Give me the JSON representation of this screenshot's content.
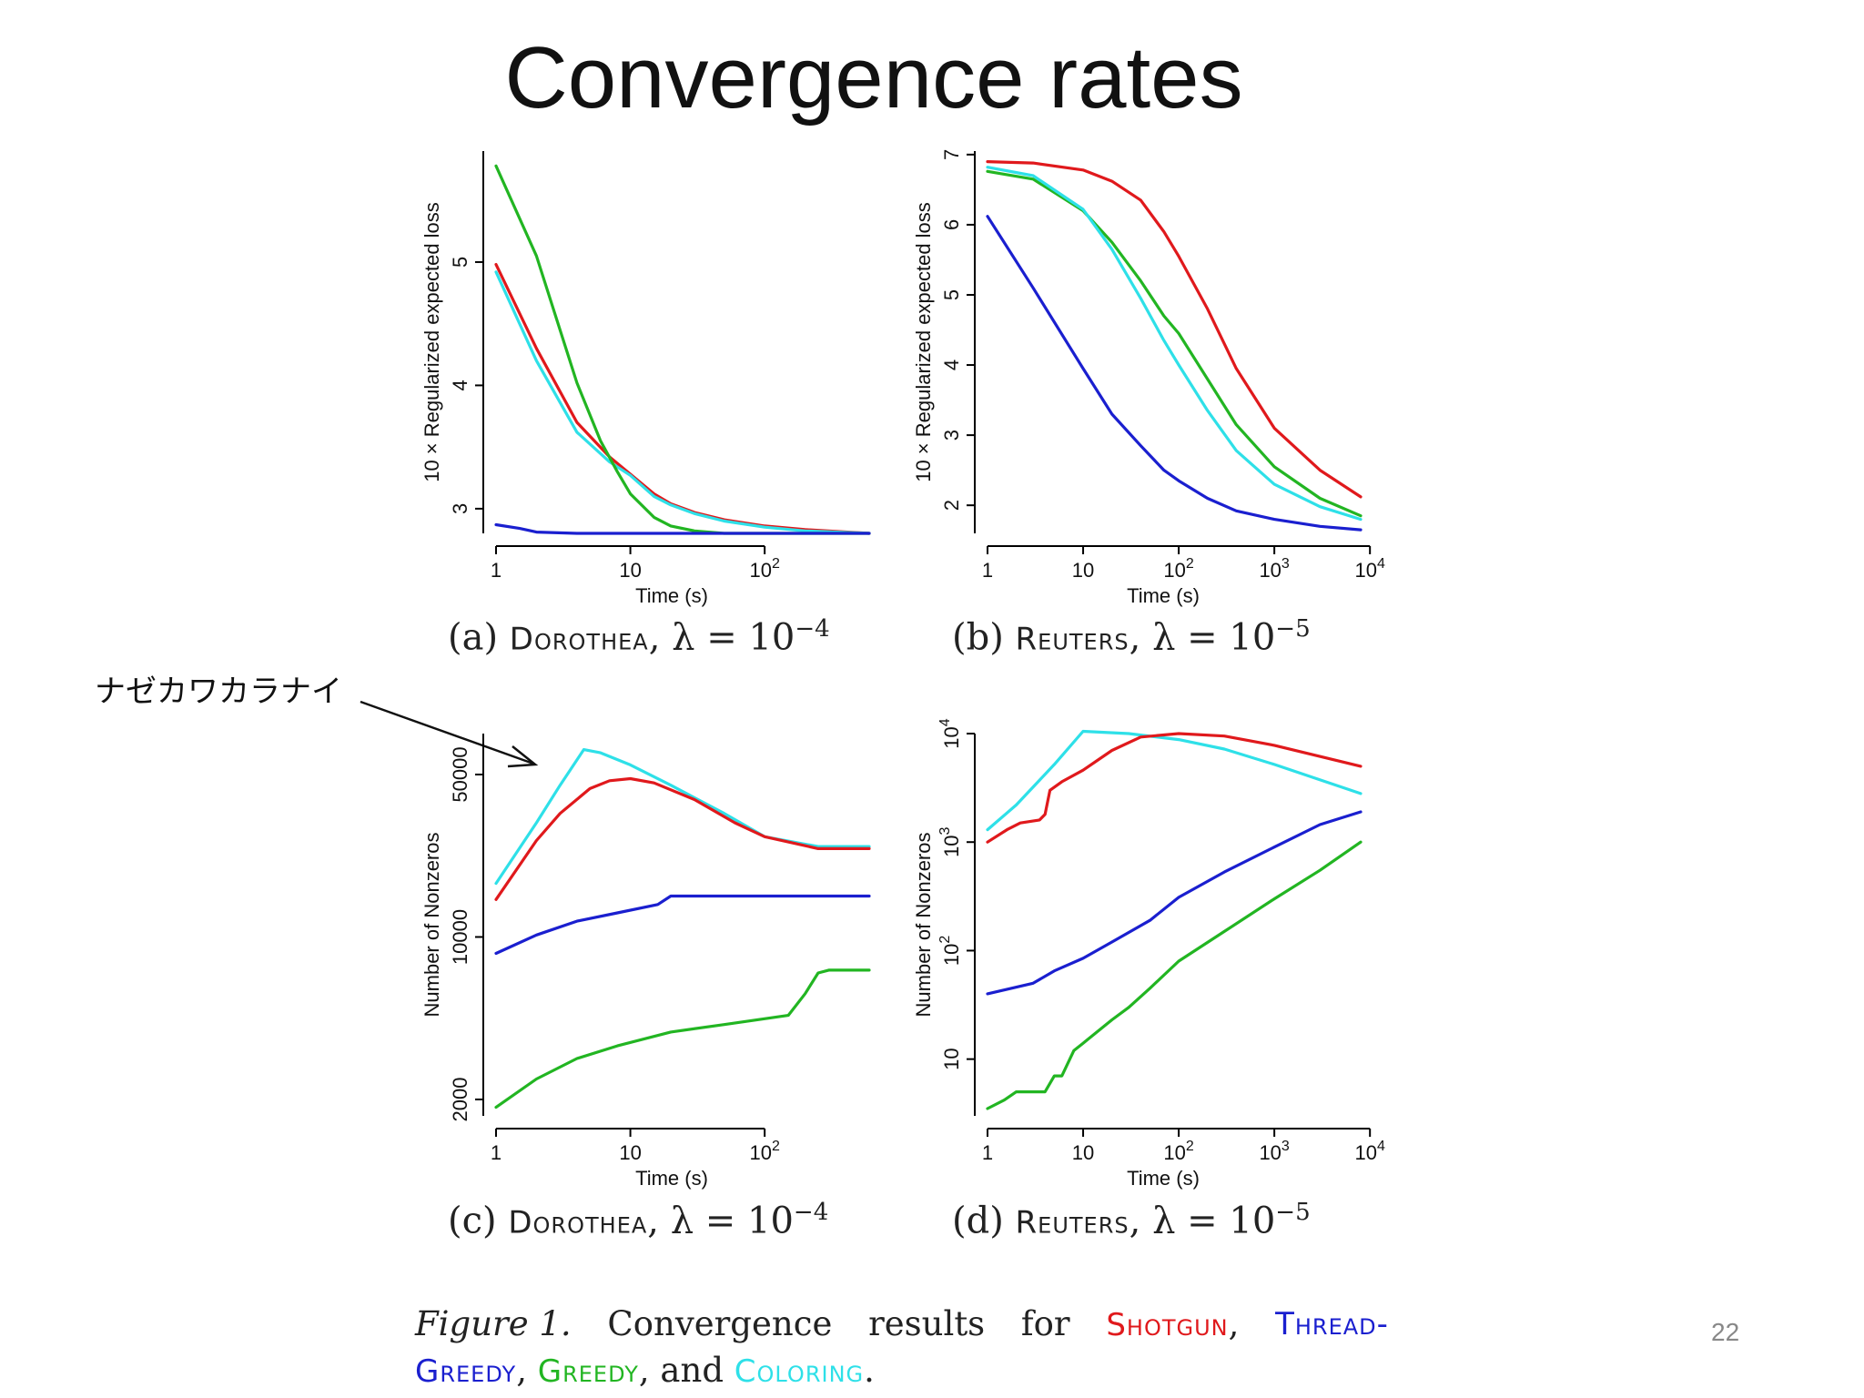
{
  "slide": {
    "title": "Convergence rates",
    "page_number": "22"
  },
  "annotation": {
    "text": "ナゼカワカラナイ"
  },
  "colors": {
    "shotgun": "#e0191c",
    "thread_greedy": "#1a1fcf",
    "greedy": "#22b522",
    "coloring": "#2ee0e8"
  },
  "panels": [
    {
      "caption_prefix": "(a)",
      "dataset": "Dorothea",
      "lambda_text": "λ = 10",
      "lambda_exp": "−4"
    },
    {
      "caption_prefix": "(b)",
      "dataset": "Reuters",
      "lambda_text": "λ = 10",
      "lambda_exp": "−5"
    },
    {
      "caption_prefix": "(c)",
      "dataset": "Dorothea",
      "lambda_text": "λ = 10",
      "lambda_exp": "−4"
    },
    {
      "caption_prefix": "(d)",
      "dataset": "Reuters",
      "lambda_text": "λ = 10",
      "lambda_exp": "−5"
    }
  ],
  "figure_caption": {
    "prefix": "Figure 1.",
    "word1": "Convergence",
    "word2": "results",
    "word3": "for",
    "shotgun": "Shotgun",
    "comma1": ",",
    "thread_part1": "Thread-",
    "thread_part2": "Greedy",
    "comma2": ",",
    "greedy": "Greedy",
    "and_text": ", and",
    "coloring": "Coloring",
    "period": "."
  },
  "chart_data": [
    {
      "type": "line",
      "title": "(a) Dorothea, λ = 10−4",
      "xlabel": "Time (s)",
      "ylabel": "10 × Regularized expected loss",
      "xscale": "log",
      "yscale": "linear",
      "xlim": [
        1,
        600
      ],
      "ylim": [
        2.8,
        5.9
      ],
      "xticks": [
        {
          "v": 1,
          "base": "1",
          "exp": ""
        },
        {
          "v": 10,
          "base": "10",
          "exp": ""
        },
        {
          "v": 100,
          "base": "10",
          "exp": "2"
        }
      ],
      "yticks": [
        {
          "v": 3,
          "label": "3"
        },
        {
          "v": 4,
          "label": "4"
        },
        {
          "v": 5,
          "label": "5"
        }
      ],
      "series": [
        {
          "name": "Shotgun",
          "color": "#e0191c",
          "x": [
            1,
            2,
            4,
            7,
            10,
            15,
            20,
            30,
            50,
            100,
            200,
            600
          ],
          "y": [
            4.98,
            4.3,
            3.7,
            3.42,
            3.28,
            3.12,
            3.04,
            2.97,
            2.91,
            2.86,
            2.83,
            2.8
          ]
        },
        {
          "name": "Coloring",
          "color": "#2ee0e8",
          "x": [
            1,
            2,
            4,
            7,
            10,
            15,
            20,
            30,
            50,
            100,
            200,
            600
          ],
          "y": [
            4.92,
            4.2,
            3.62,
            3.38,
            3.27,
            3.1,
            3.03,
            2.96,
            2.9,
            2.85,
            2.82,
            2.8
          ]
        },
        {
          "name": "Greedy",
          "color": "#22b522",
          "x": [
            1,
            2,
            4,
            6,
            8,
            10,
            15,
            20,
            30,
            50,
            100,
            600
          ],
          "y": [
            5.78,
            5.05,
            4.02,
            3.55,
            3.3,
            3.12,
            2.93,
            2.86,
            2.82,
            2.8,
            2.8,
            2.8
          ]
        },
        {
          "name": "Thread-Greedy",
          "color": "#1a1fcf",
          "x": [
            1,
            1.5,
            2,
            4,
            10,
            100,
            600
          ],
          "y": [
            2.87,
            2.84,
            2.81,
            2.8,
            2.8,
            2.8,
            2.8
          ]
        }
      ]
    },
    {
      "type": "line",
      "title": "(b) Reuters, λ = 10−5",
      "xlabel": "Time (s)",
      "ylabel": "10 × Regularized expected loss",
      "xscale": "log",
      "yscale": "linear",
      "xlim": [
        1,
        8000
      ],
      "ylim": [
        1.6,
        7.05
      ],
      "xticks": [
        {
          "v": 1,
          "base": "1",
          "exp": ""
        },
        {
          "v": 10,
          "base": "10",
          "exp": ""
        },
        {
          "v": 100,
          "base": "10",
          "exp": "2"
        },
        {
          "v": 1000,
          "base": "10",
          "exp": "3"
        },
        {
          "v": 10000,
          "base": "10",
          "exp": "4"
        }
      ],
      "yticks": [
        {
          "v": 2,
          "label": "2"
        },
        {
          "v": 3,
          "label": "3"
        },
        {
          "v": 4,
          "label": "4"
        },
        {
          "v": 5,
          "label": "5"
        },
        {
          "v": 6,
          "label": "6"
        },
        {
          "v": 7,
          "label": "7"
        }
      ],
      "series": [
        {
          "name": "Shotgun",
          "color": "#e0191c",
          "x": [
            1,
            3,
            10,
            20,
            40,
            70,
            100,
            200,
            400,
            1000,
            3000,
            8000
          ],
          "y": [
            6.9,
            6.88,
            6.78,
            6.62,
            6.35,
            5.9,
            5.55,
            4.8,
            3.95,
            3.1,
            2.5,
            2.12
          ]
        },
        {
          "name": "Greedy",
          "color": "#22b522",
          "x": [
            1,
            3,
            10,
            20,
            40,
            70,
            100,
            200,
            400,
            1000,
            3000,
            8000
          ],
          "y": [
            6.76,
            6.65,
            6.2,
            5.75,
            5.2,
            4.7,
            4.45,
            3.8,
            3.15,
            2.55,
            2.1,
            1.85
          ]
        },
        {
          "name": "Coloring",
          "color": "#2ee0e8",
          "x": [
            1,
            3,
            10,
            20,
            40,
            70,
            100,
            200,
            400,
            1000,
            3000,
            8000
          ],
          "y": [
            6.82,
            6.7,
            6.22,
            5.65,
            4.95,
            4.35,
            4.0,
            3.35,
            2.78,
            2.3,
            1.98,
            1.8
          ]
        },
        {
          "name": "Thread-Greedy",
          "color": "#1a1fcf",
          "x": [
            1,
            3,
            10,
            20,
            40,
            70,
            100,
            200,
            400,
            1000,
            3000,
            8000
          ],
          "y": [
            6.12,
            5.1,
            3.95,
            3.3,
            2.85,
            2.5,
            2.35,
            2.1,
            1.92,
            1.8,
            1.7,
            1.65
          ]
        }
      ]
    },
    {
      "type": "line",
      "title": "(c) Dorothea, λ = 10−4",
      "xlabel": "Time (s)",
      "ylabel": "Number of Nonzeros",
      "xscale": "log",
      "yscale": "log",
      "xlim": [
        1,
        600
      ],
      "ylim": [
        1700,
        75000
      ],
      "xticks": [
        {
          "v": 1,
          "base": "1",
          "exp": ""
        },
        {
          "v": 10,
          "base": "10",
          "exp": ""
        },
        {
          "v": 100,
          "base": "10",
          "exp": "2"
        }
      ],
      "yticks": [
        {
          "v": 2000,
          "label": "2000"
        },
        {
          "v": 10000,
          "label": "10000"
        },
        {
          "v": 50000,
          "label": "50000"
        }
      ],
      "series": [
        {
          "name": "Coloring",
          "color": "#2ee0e8",
          "x": [
            1,
            2,
            3,
            4.5,
            6,
            10,
            20,
            50,
            100,
            250,
            600
          ],
          "y": [
            17000,
            31000,
            45000,
            64000,
            62000,
            55000,
            45000,
            34000,
            27000,
            24500,
            24500
          ]
        },
        {
          "name": "Shotgun",
          "color": "#e0191c",
          "x": [
            1,
            2,
            3,
            5,
            7,
            10,
            15,
            30,
            60,
            100,
            250,
            600
          ],
          "y": [
            14500,
            26000,
            34000,
            43500,
            47000,
            48000,
            46000,
            39000,
            31000,
            27000,
            24000,
            24000
          ]
        },
        {
          "name": "Thread-Greedy",
          "color": "#1a1fcf",
          "x": [
            1,
            2,
            4,
            8,
            16,
            20,
            40,
            100,
            300,
            600
          ],
          "y": [
            8500,
            10200,
            11700,
            12700,
            13800,
            15000,
            15000,
            15000,
            15000,
            15000
          ]
        },
        {
          "name": "Greedy",
          "color": "#22b522",
          "x": [
            1,
            2,
            4,
            8,
            20,
            50,
            150,
            200,
            250,
            300,
            600
          ],
          "y": [
            1850,
            2450,
            3000,
            3400,
            3900,
            4200,
            4600,
            5700,
            7000,
            7200,
            7200
          ]
        }
      ]
    },
    {
      "type": "line",
      "title": "(d) Reuters, λ = 10−5",
      "xlabel": "Time (s)",
      "ylabel": "Number of Nonzeros",
      "xscale": "log",
      "yscale": "log",
      "xlim": [
        1,
        8000
      ],
      "ylim": [
        3,
        10000
      ],
      "xticks": [
        {
          "v": 1,
          "base": "1",
          "exp": ""
        },
        {
          "v": 10,
          "base": "10",
          "exp": ""
        },
        {
          "v": 100,
          "base": "10",
          "exp": "2"
        },
        {
          "v": 1000,
          "base": "10",
          "exp": "3"
        },
        {
          "v": 10000,
          "base": "10",
          "exp": "4"
        }
      ],
      "yticks": [
        {
          "v": 10,
          "base": "10",
          "exp": ""
        },
        {
          "v": 100,
          "base": "10",
          "exp": "2"
        },
        {
          "v": 1000,
          "base": "10",
          "exp": "3"
        },
        {
          "v": 10000,
          "base": "10",
          "exp": "4"
        }
      ],
      "series": [
        {
          "name": "Coloring",
          "color": "#2ee0e8",
          "x": [
            1,
            2,
            5,
            10,
            30,
            100,
            300,
            1000,
            8000
          ],
          "y": [
            1300,
            2200,
            5200,
            10500,
            10000,
            8800,
            7200,
            5200,
            2800
          ]
        },
        {
          "name": "Shotgun",
          "color": "#e0191c",
          "x": [
            1,
            1.6,
            2.2,
            3.5,
            4,
            4.5,
            6,
            10,
            20,
            40,
            100,
            300,
            1000,
            8000
          ],
          "y": [
            1000,
            1300,
            1500,
            1600,
            1800,
            3000,
            3600,
            4600,
            7000,
            9300,
            10000,
            9500,
            7800,
            5000
          ]
        },
        {
          "name": "Thread-Greedy",
          "color": "#1a1fcf",
          "x": [
            1,
            3,
            5,
            10,
            20,
            50,
            100,
            300,
            1000,
            3000,
            8000
          ],
          "y": [
            40,
            50,
            65,
            85,
            120,
            190,
            310,
            530,
            900,
            1450,
            1900
          ]
        },
        {
          "name": "Greedy",
          "color": "#22b522",
          "x": [
            1,
            1.5,
            2,
            4,
            5,
            6,
            8,
            10,
            20,
            30,
            50,
            100,
            300,
            1000,
            3000,
            8000
          ],
          "y": [
            3.5,
            4.2,
            5,
            5,
            7,
            7,
            12,
            14,
            23,
            30,
            45,
            80,
            150,
            300,
            550,
            1000
          ]
        }
      ]
    }
  ]
}
